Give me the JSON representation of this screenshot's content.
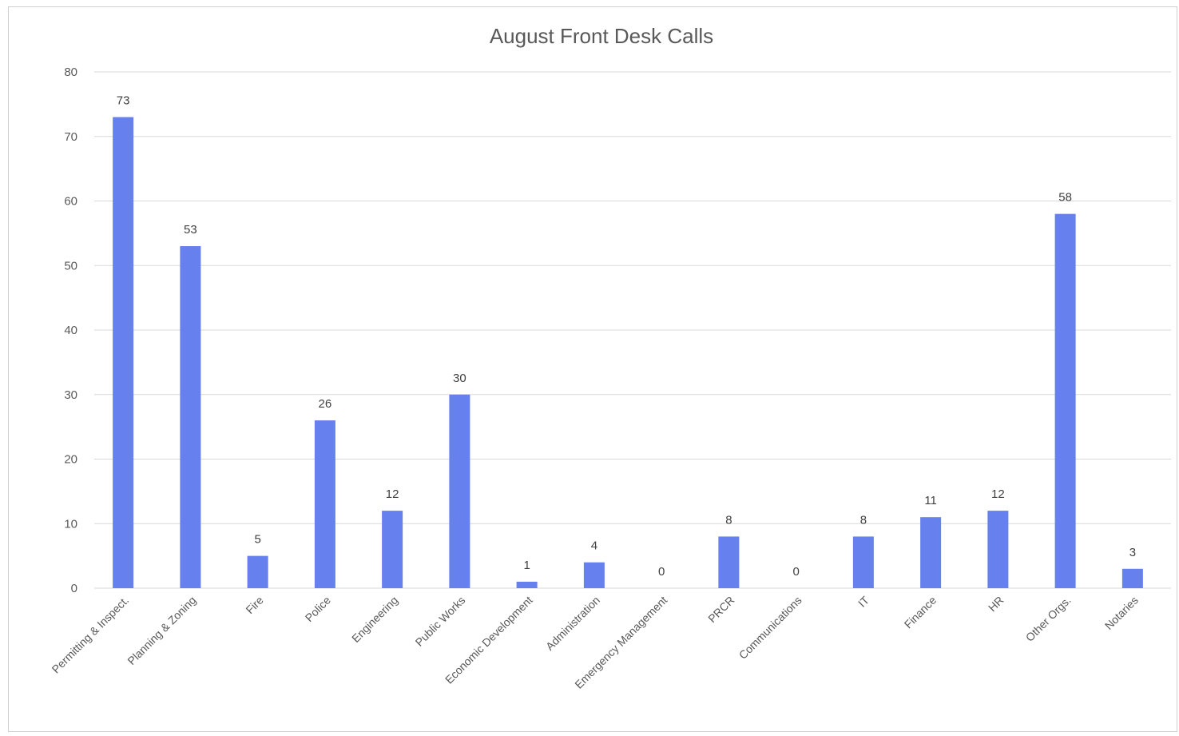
{
  "chart_data": {
    "type": "bar",
    "title": "August Front Desk Calls",
    "xlabel": "",
    "ylabel": "",
    "ylim": [
      0,
      80
    ],
    "yticks": [
      0,
      10,
      20,
      30,
      40,
      50,
      60,
      70,
      80
    ],
    "grid": true,
    "legend": "none",
    "bar_color": "#6680ee",
    "categories": [
      "Permitting & Inspect.",
      "Planning & Zoning",
      "Fire",
      "Police",
      "Engineering",
      "Public Works",
      "Economic Development",
      "Administration",
      "Emergency Management",
      "PRCR",
      "Communications",
      "IT",
      "Finance",
      "HR",
      "Other Orgs.",
      "Notaries"
    ],
    "values": [
      73,
      53,
      5,
      26,
      12,
      30,
      1,
      4,
      0,
      8,
      0,
      8,
      11,
      12,
      58,
      3
    ]
  }
}
